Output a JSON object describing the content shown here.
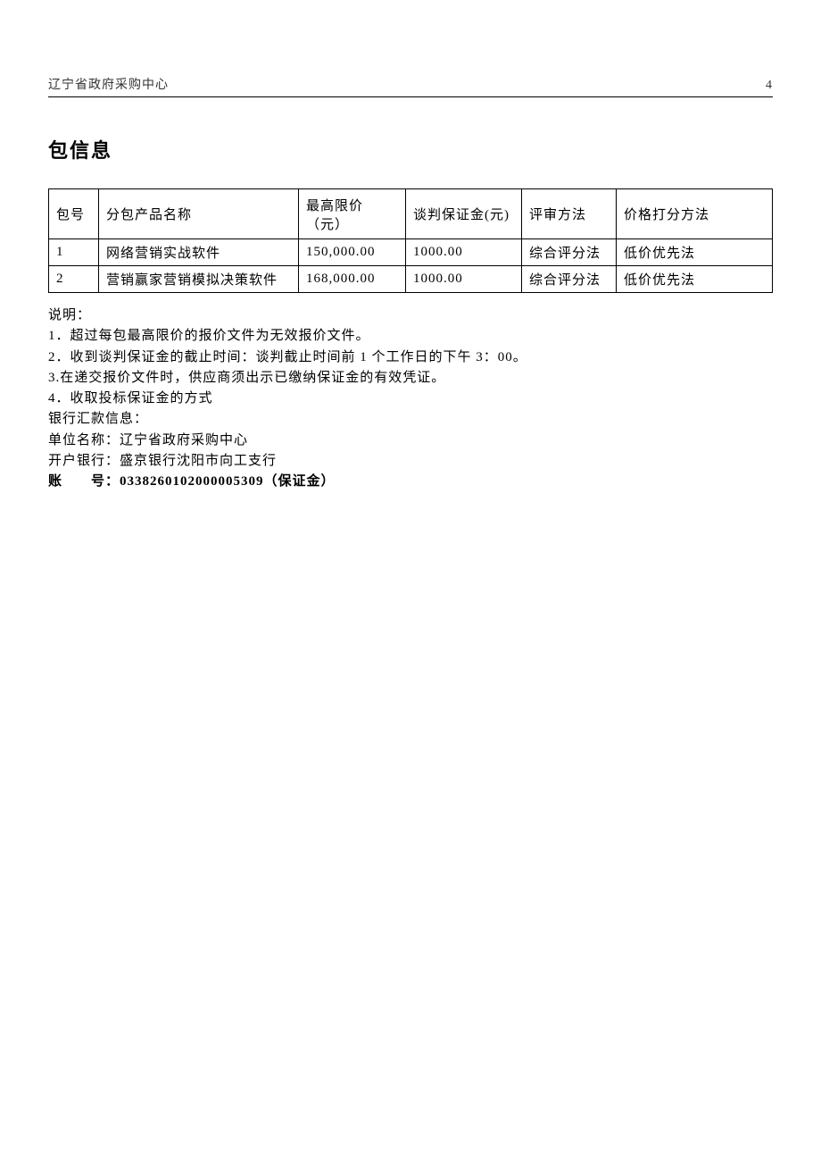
{
  "header": {
    "org": "辽宁省政府采购中心",
    "page_no": "4"
  },
  "section_title": "包信息",
  "table": {
    "columns": {
      "no": "包号",
      "name": "分包产品名称",
      "max_price": "最高限价（元）",
      "deposit": "谈判保证金(元)",
      "method": "评审方法",
      "price_method": "价格打分方法"
    },
    "rows": [
      {
        "no": "1",
        "name": "网络营销实战软件",
        "max_price": "150,000.00",
        "deposit": "1000.00",
        "method": "综合评分法",
        "price_method": "低价优先法"
      },
      {
        "no": "2",
        "name": "营销赢家营销模拟决策软件",
        "max_price": "168,000.00",
        "deposit": "1000.00",
        "method": "综合评分法",
        "price_method": "低价优先法"
      }
    ]
  },
  "notes": {
    "heading": "说明：",
    "n1": "1．超过每包最高限价的报价文件为无效报价文件。",
    "n2": "2．收到谈判保证金的截止时间：谈判截止时间前 1 个工作日的下午 3：00。",
    "n3": "3.在递交报价文件时，供应商须出示已缴纳保证金的有效凭证。",
    "n4": "4．收取投标保证金的方式",
    "bank_info_label": "银行汇款信息：",
    "unit_label": "单位名称：",
    "unit_value": "辽宁省政府采购中心",
    "bank_label": "开户银行：",
    "bank_value": "盛京银行沈阳市向工支行",
    "acct_label": "账　　号：",
    "acct_value": "0338260102000005309（保证金）"
  }
}
